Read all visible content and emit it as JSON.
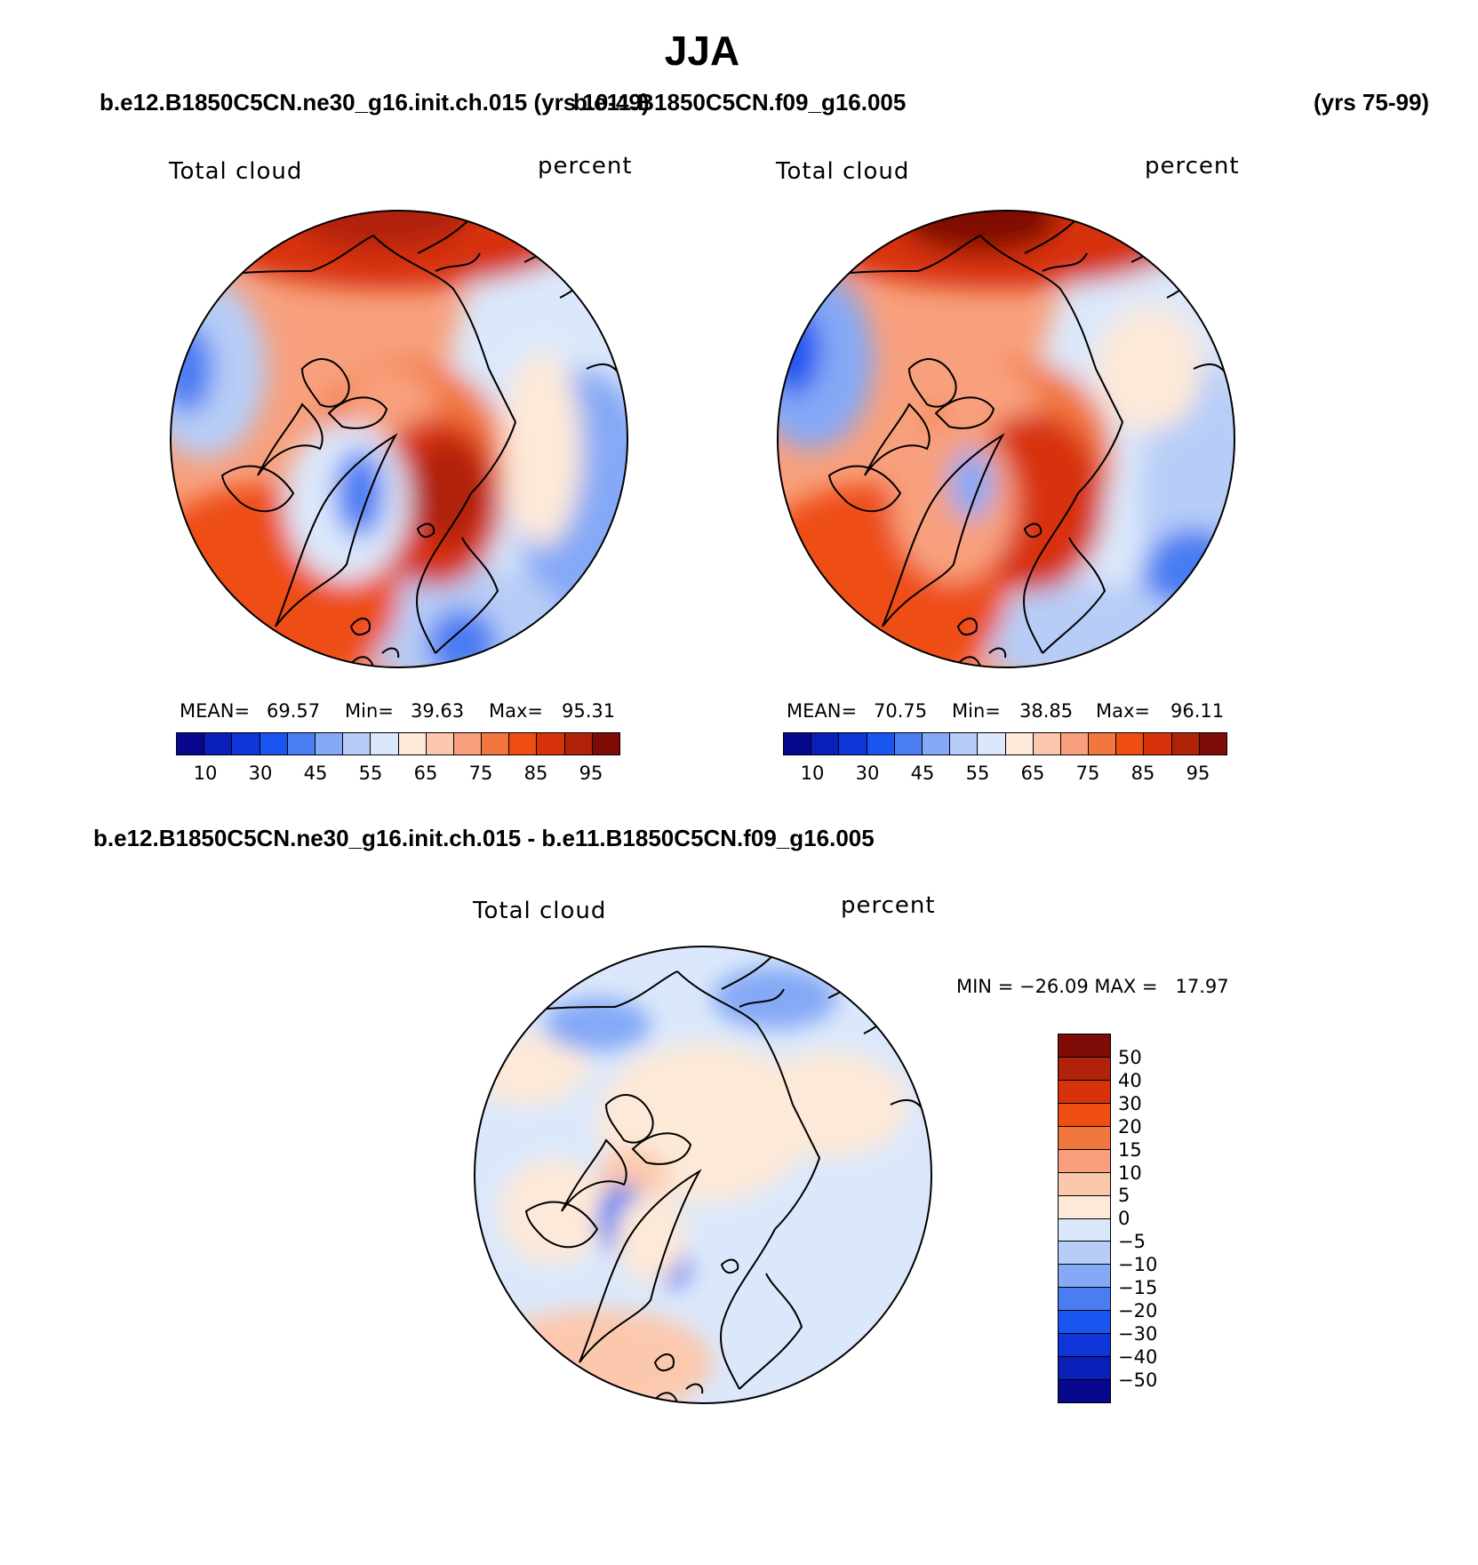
{
  "title": "JJA",
  "top_left_case": "b.e12.B1850C5CN.ne30_g16.init.ch.015 (yrs 10-49)",
  "top_right_case": "b.e11.B1850C5CN.f09_g16.005",
  "top_right_years": "(yrs 75-99)",
  "diff_case": "b.e12.B1850C5CN.ne30_g16.init.ch.015 - b.e11.B1850C5CN.f09_g16.005",
  "panels": {
    "left": {
      "variable": "Total cloud",
      "units": "percent",
      "mean_label": "MEAN=",
      "mean": "69.57",
      "min_label": "Min=",
      "min": "39.63",
      "max_label": "Max=",
      "max": "95.31"
    },
    "right": {
      "variable": "Total cloud",
      "units": "percent",
      "mean_label": "MEAN=",
      "mean": "70.75",
      "min_label": "Min=",
      "min": "38.85",
      "max_label": "Max=",
      "max": "96.11"
    },
    "diff": {
      "variable": "Total cloud",
      "units": "percent",
      "minmax_text": "MIN = −26.09 MAX =   17.97"
    }
  },
  "abs_colorbar": {
    "colors": [
      "#08088f",
      "#0a1fb8",
      "#0d35d8",
      "#1a55f0",
      "#4a7cf2",
      "#85a9f6",
      "#b7cdf7",
      "#dbe8fb",
      "#fde9d8",
      "#fcc8ad",
      "#f8a07d",
      "#f2773f",
      "#ee4e12",
      "#d7330a",
      "#b02309",
      "#7f0b06"
    ],
    "ticks": [
      "10",
      "30",
      "45",
      "55",
      "65",
      "75",
      "85",
      "95"
    ]
  },
  "diff_colorbar": {
    "colors_top_to_bottom": [
      "#7f0b06",
      "#b02309",
      "#d7330a",
      "#ee4e12",
      "#f2773f",
      "#f8a07d",
      "#fcc8ad",
      "#fde9d8",
      "#dbe8fb",
      "#b7cdf7",
      "#85a9f6",
      "#4a7cf2",
      "#1a55f0",
      "#0d35d8",
      "#0a1fb8",
      "#08088f"
    ],
    "ticks": [
      "50",
      "40",
      "30",
      "20",
      "15",
      "10",
      "5",
      "0",
      "−5",
      "−10",
      "−15",
      "−20",
      "−30",
      "−40",
      "−50"
    ]
  }
}
